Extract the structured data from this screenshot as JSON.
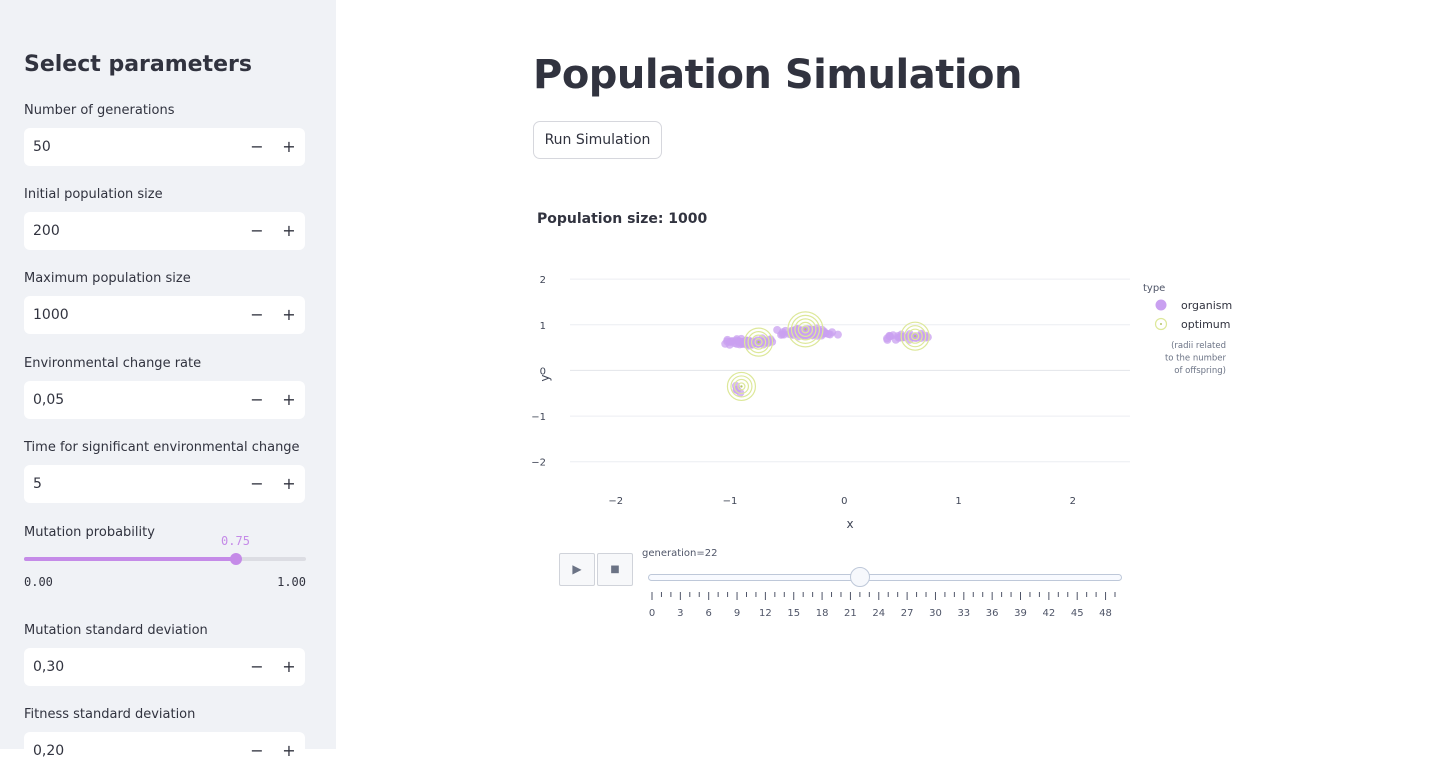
{
  "sidebar": {
    "title": "Select parameters",
    "fields": [
      {
        "label": "Number of generations",
        "value": "50"
      },
      {
        "label": "Initial population size",
        "value": "200"
      },
      {
        "label": "Maximum population size",
        "value": "1000"
      },
      {
        "label": "Environmental change rate",
        "value": "0,05"
      },
      {
        "label": "Time for significant environmental change",
        "value": "5"
      },
      {
        "label": "Mutation standard deviation",
        "value": "0,30"
      },
      {
        "label": "Fitness standard deviation",
        "value": "0,20"
      }
    ],
    "minus_symbol": "−",
    "plus_symbol": "+",
    "slider": {
      "label": "Mutation probability",
      "value": 0.75,
      "value_label": "0.75",
      "min_label": "0.00",
      "max_label": "1.00"
    }
  },
  "main": {
    "title": "Population Simulation",
    "run_button": "Run Simulation",
    "population_text": "Population size: 1000"
  },
  "animation": {
    "play_symbol": "▶",
    "stop_symbol": "■",
    "current_label": "generation=22",
    "current": 22,
    "min": 0,
    "max": 49,
    "tick_labels": [
      "0",
      "3",
      "6",
      "9",
      "12",
      "15",
      "18",
      "21",
      "24",
      "27",
      "30",
      "33",
      "36",
      "39",
      "42",
      "45",
      "48"
    ]
  },
  "chart_data": {
    "type": "scatter",
    "xlabel": "x",
    "ylabel": "y",
    "xlim": [
      -2.4,
      2.5
    ],
    "ylim": [
      -2.4,
      2.2
    ],
    "x_ticks": [
      "−2",
      "−1",
      "0",
      "1",
      "2"
    ],
    "y_ticks": [
      "2",
      "1",
      "0",
      "−1",
      "−2"
    ],
    "legend": {
      "title": "type",
      "placement": "right",
      "entries": [
        {
          "name": "organism",
          "color": "#c9a0f0"
        },
        {
          "name": "optimum",
          "color": "#dde89a"
        }
      ],
      "note": [
        "(radii related",
        "to the number",
        "of offspring)"
      ]
    },
    "series": [
      {
        "name": "organism",
        "color": "#c9a0f0",
        "clusters": [
          {
            "cx": -0.8,
            "cy": 0.62,
            "sx": 0.16,
            "sy": 0.05,
            "n": 70
          },
          {
            "cx": -0.32,
            "cy": 0.83,
            "sx": 0.17,
            "sy": 0.06,
            "n": 80
          },
          {
            "cx": 0.58,
            "cy": 0.73,
            "sx": 0.14,
            "sy": 0.05,
            "n": 35
          },
          {
            "cx": -0.92,
            "cy": -0.38,
            "sx": 0.04,
            "sy": 0.08,
            "n": 4
          }
        ]
      },
      {
        "name": "optimum",
        "color": "#dde89a",
        "points": [
          {
            "x": -0.75,
            "y": 0.62,
            "rings": 4
          },
          {
            "x": -0.34,
            "y": 0.9,
            "rings": 5
          },
          {
            "x": 0.62,
            "y": 0.75,
            "rings": 4
          },
          {
            "x": -0.9,
            "y": -0.35,
            "rings": 4
          }
        ]
      }
    ]
  }
}
